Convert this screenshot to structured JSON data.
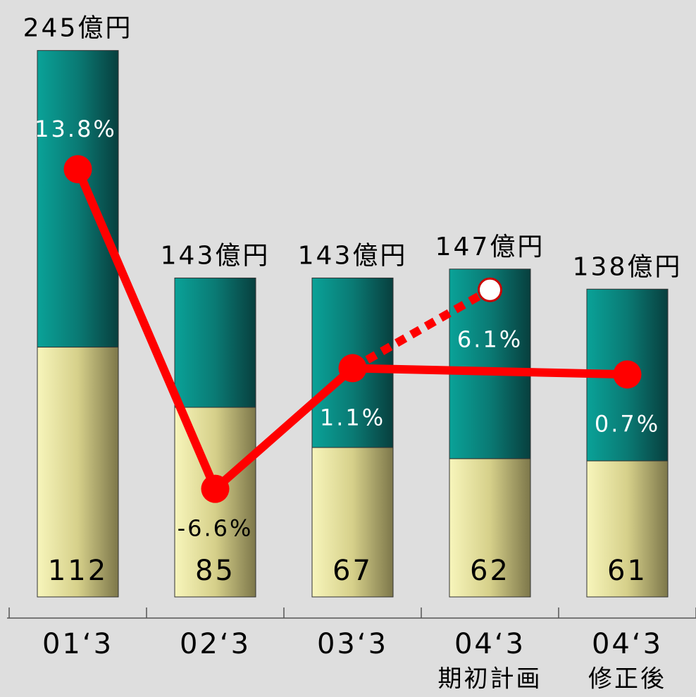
{
  "chart_data": {
    "type": "bar",
    "categories": [
      [
        "01‘3"
      ],
      [
        "02‘3"
      ],
      [
        "03‘3"
      ],
      [
        "04‘3",
        "期初計画"
      ],
      [
        "04‘3",
        "修正後"
      ]
    ],
    "series": [
      {
        "color": "#d9d48a",
        "values": [
          112,
          85,
          67,
          62,
          61
        ]
      },
      {
        "color": "#0a7a74",
        "values": [
          133,
          58,
          76,
          85,
          77
        ]
      }
    ],
    "totals": [
      245,
      143,
      143,
      147,
      138
    ],
    "total_labels": [
      "245億円",
      "143億円",
      "143億円",
      "147億円",
      "138億円"
    ],
    "ylim": [
      0,
      255
    ],
    "lines": [
      {
        "type": "line",
        "axis": "y2",
        "color": "#ff0000",
        "connect_gaps": true,
        "dashed": false,
        "values": [
          13.8,
          -6.6,
          1.1,
          null,
          0.7
        ],
        "value_labels": [
          "13.8%",
          "-6.6%",
          "1.1%",
          null,
          "0.7%"
        ]
      },
      {
        "type": "line",
        "axis": "y2",
        "color": "#ff0000",
        "connect_gaps": false,
        "dashed": true,
        "hollow_last": true,
        "values": [
          null,
          null,
          1.1,
          6.1,
          null
        ],
        "value_labels": [
          null,
          null,
          null,
          "6.1%",
          null
        ]
      }
    ],
    "y2lim": [
      -13.5,
      22.8
    ]
  }
}
